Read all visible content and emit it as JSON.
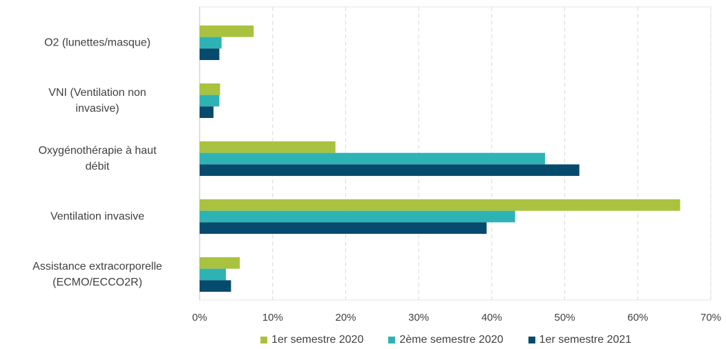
{
  "chart_data": {
    "type": "hbar",
    "categories": [
      "O2 (lunettes/masque)",
      "VNI (Ventilation non\ninvasive)",
      "Oxygénothérapie à haut\ndébit",
      "Ventilation invasive",
      "Assistance extracorporelle\n(ECMO/ECCO2R)"
    ],
    "series": [
      {
        "name": "1er semestre 2020",
        "color": "#a9c23f",
        "values": [
          7.4,
          2.8,
          18.6,
          65.8,
          5.5
        ]
      },
      {
        "name": "2ème semestre 2020",
        "color": "#2eb3b5",
        "values": [
          3.0,
          2.7,
          47.3,
          43.2,
          3.6
        ]
      },
      {
        "name": "1er semestre 2021",
        "color": "#064a6e",
        "values": [
          2.7,
          1.9,
          52.0,
          39.3,
          4.3
        ]
      }
    ],
    "xlim": [
      0,
      70
    ],
    "xticks": [
      {
        "value": 0,
        "label": "0%"
      },
      {
        "value": 10,
        "label": "10%"
      },
      {
        "value": 20,
        "label": "20%"
      },
      {
        "value": 30,
        "label": "30%"
      },
      {
        "value": 40,
        "label": "40%"
      },
      {
        "value": 50,
        "label": "50%"
      },
      {
        "value": 60,
        "label": "60%"
      },
      {
        "value": 70,
        "label": "70%"
      }
    ],
    "grid": true,
    "legend": "bottom"
  }
}
